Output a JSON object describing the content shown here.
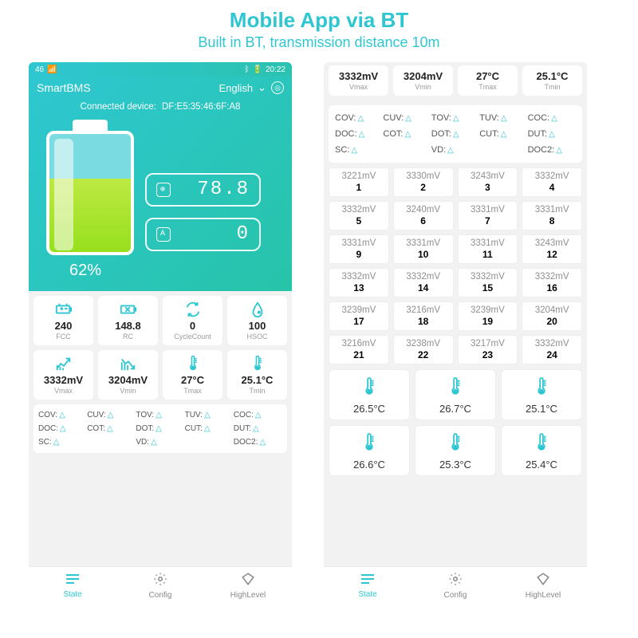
{
  "colors": {
    "accent": "#2ec7d1",
    "accent2": "#27c4a9",
    "battery_fill": "#bde843",
    "text_muted": "#9a9a9a",
    "bg_panel": "#f2f2f2",
    "card_bg": "#ffffff"
  },
  "header": {
    "title": "Mobile App via BT",
    "subtitle": "Built in BT, transmission distance 10m"
  },
  "statusbar": {
    "carrier": "46",
    "time": "20:22"
  },
  "hero": {
    "app_name": "SmartBMS",
    "language": "English",
    "device_label": "Connected device:",
    "device_mac": "DF:E5:35:46:6F:A8",
    "battery_pct": "62%",
    "readout1": "78.8",
    "readout2": "0"
  },
  "metrics_row1": [
    {
      "icon": "battery",
      "value": "240",
      "label": "FCC"
    },
    {
      "icon": "battery-x",
      "value": "148.8",
      "label": "RC"
    },
    {
      "icon": "cycle",
      "value": "0",
      "label": "CycleCount"
    },
    {
      "icon": "drop",
      "value": "100",
      "label": "HSOC"
    }
  ],
  "metrics_row2": [
    {
      "icon": "up",
      "value": "3332mV",
      "label": "Vmax"
    },
    {
      "icon": "down",
      "value": "3204mV",
      "label": "Vmin"
    },
    {
      "icon": "therm",
      "value": "27°C",
      "label": "Tmax"
    },
    {
      "icon": "therm",
      "value": "25.1°C",
      "label": "Tmin"
    }
  ],
  "status_flags": [
    "COV:",
    "CUV:",
    "TOV:",
    "TUV:",
    "COC:",
    "DOC:",
    "COT:",
    "DOT:",
    "CUT:",
    "DUT:",
    "SC:",
    "",
    "VD:",
    "",
    "DOC2:"
  ],
  "nav": [
    {
      "label": "State",
      "active": true
    },
    {
      "label": "Config",
      "active": false
    },
    {
      "label": "HighLevel",
      "active": false
    }
  ],
  "panel2_top": [
    {
      "value": "3332mV",
      "label": "Vmax"
    },
    {
      "value": "3204mV",
      "label": "Vmin"
    },
    {
      "value": "27°C",
      "label": "Tmax"
    },
    {
      "value": "25.1°C",
      "label": "Tmin"
    }
  ],
  "cells": [
    "3221mV",
    "3330mV",
    "3243mV",
    "3332mV",
    "3332mV",
    "3240mV",
    "3331mV",
    "3331mV",
    "3331mV",
    "3331mV",
    "3331mV",
    "3243mV",
    "3332mV",
    "3332mV",
    "3332mV",
    "3332mV",
    "3239mV",
    "3216mV",
    "3239mV",
    "3204mV",
    "3216mV",
    "3238mV",
    "3217mV",
    "3332mV"
  ],
  "temps": [
    "26.5°C",
    "26.7°C",
    "25.1°C",
    "26.6°C",
    "25.3°C",
    "25.4°C"
  ]
}
